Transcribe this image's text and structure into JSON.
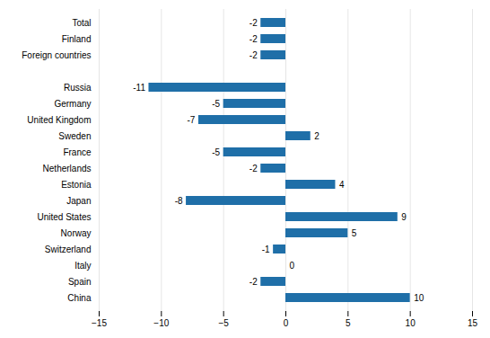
{
  "chart_data": {
    "type": "bar",
    "orientation": "horizontal",
    "categories": [
      "Total",
      "Finland",
      "Foreign countries",
      null,
      "Russia",
      "Germany",
      "United Kingdom",
      "Sweden",
      "France",
      "Netherlands",
      "Estonia",
      "Japan",
      "United States",
      "Norway",
      "Switzerland",
      "Italy",
      "Spain",
      "China"
    ],
    "values": [
      -2,
      -2,
      -2,
      null,
      -11,
      -5,
      -7,
      2,
      -5,
      -2,
      4,
      -8,
      9,
      5,
      -1,
      0,
      -2,
      10
    ],
    "color": "#1F6FA8",
    "xlim": [
      -15,
      15
    ],
    "xticks": [
      -15,
      -10,
      -5,
      0,
      5,
      10,
      15
    ],
    "grid": true,
    "data_labels": true
  }
}
